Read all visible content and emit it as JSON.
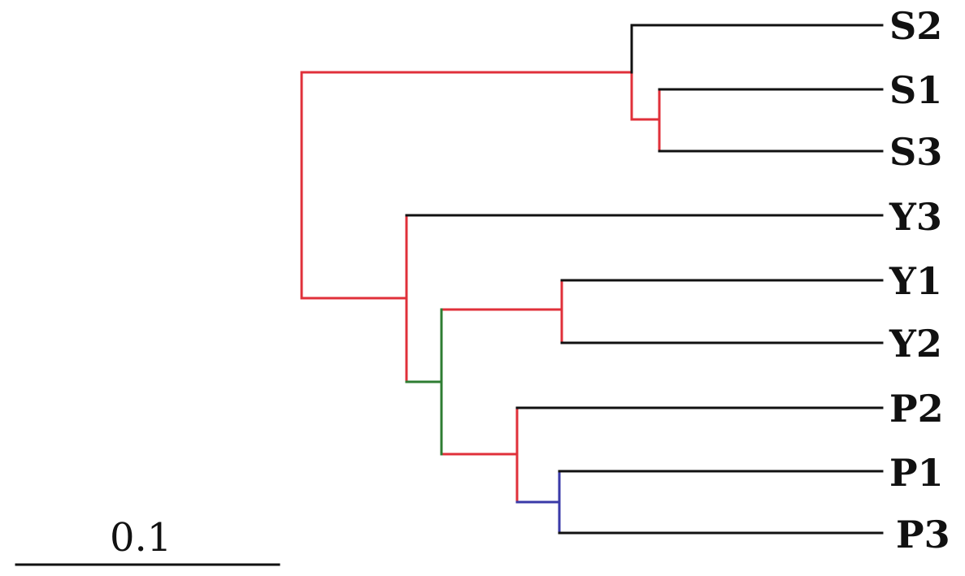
{
  "tree": {
    "leaves": [
      {
        "id": "S2",
        "label": "S2"
      },
      {
        "id": "S1",
        "label": "S1"
      },
      {
        "id": "S3",
        "label": "S3"
      },
      {
        "id": "Y3",
        "label": "Y3"
      },
      {
        "id": "Y1",
        "label": "Y1"
      },
      {
        "id": "Y2",
        "label": "Y2"
      },
      {
        "id": "P2",
        "label": "P2"
      },
      {
        "id": "P1",
        "label": "P1"
      },
      {
        "id": "P3",
        "label": "P3"
      }
    ],
    "colors": {
      "terminal": "#111111",
      "red": "#e0303a",
      "green": "#2e7d32",
      "blue": "#3a3aa8"
    }
  },
  "scale_bar": {
    "label": "0.1"
  }
}
